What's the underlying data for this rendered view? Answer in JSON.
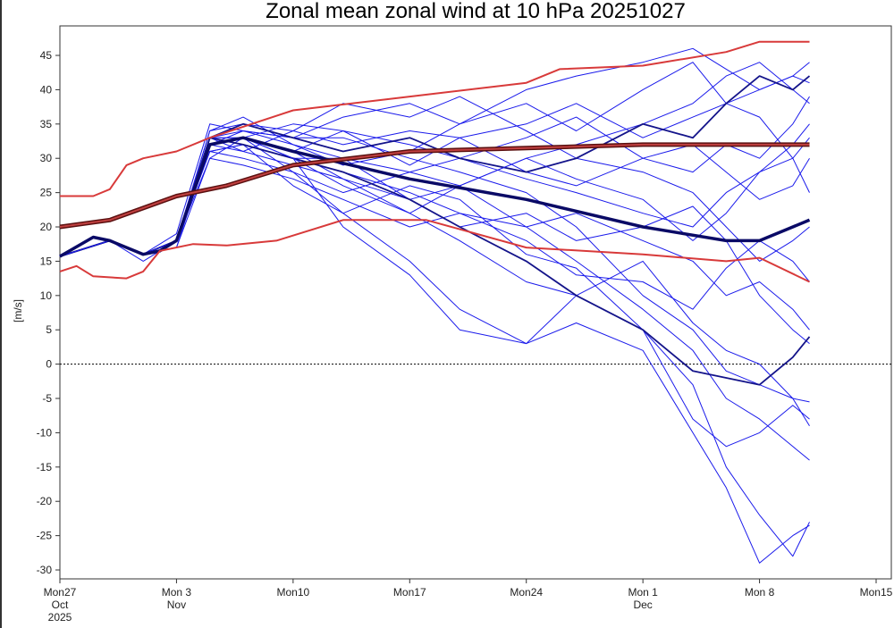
{
  "chart_data": {
    "type": "line",
    "title": "Zonal mean zonal wind at 10 hPa 20251027",
    "xlabel": "",
    "ylabel": "[m/s]",
    "ylim": [
      -31.3,
      49.3
    ],
    "xlim_days": [
      0,
      50
    ],
    "x_unit": "days since Mon 27 Oct 2025",
    "yticks": [
      45,
      40,
      35,
      30,
      25,
      20,
      15,
      10,
      5,
      0,
      -5,
      -10,
      -15,
      -20,
      -25,
      -30
    ],
    "xticks": [
      {
        "day": 0,
        "lines": [
          "Mon27",
          "Oct",
          "2025"
        ]
      },
      {
        "day": 7,
        "lines": [
          "Mon 3",
          "Nov"
        ]
      },
      {
        "day": 14,
        "lines": [
          "Mon10"
        ]
      },
      {
        "day": 21,
        "lines": [
          "Mon17"
        ]
      },
      {
        "day": 28,
        "lines": [
          "Mon24"
        ]
      },
      {
        "day": 35,
        "lines": [
          "Mon 1",
          "Dec"
        ]
      },
      {
        "day": 42,
        "lines": [
          "Mon 8"
        ]
      },
      {
        "day": 49,
        "lines": [
          "Mon15"
        ]
      }
    ],
    "zero_line": true,
    "colors": {
      "member": "#1a1aeb",
      "ensemble_mean": "#0a0a66",
      "clim_mean": "#8b1a1a",
      "clim_bounds": "#d83a3a"
    },
    "climatology": {
      "mean": {
        "x": [
          0,
          3,
          7,
          10,
          14,
          21,
          28,
          35,
          45
        ],
        "y": [
          20,
          21,
          24.5,
          26,
          29,
          31,
          31.5,
          32,
          32
        ]
      },
      "upper": {
        "x": [
          0,
          2,
          3,
          4,
          5,
          7,
          9,
          14,
          21,
          28,
          30,
          35,
          40,
          42,
          45
        ],
        "y": [
          24.5,
          24.5,
          25.5,
          29,
          30,
          31,
          33,
          37,
          39,
          41,
          43,
          43.5,
          45.5,
          47,
          47
        ]
      },
      "lower": {
        "x": [
          0,
          1,
          2,
          4,
          5,
          6,
          8,
          10,
          13,
          17,
          22,
          28,
          35,
          40,
          42,
          45
        ],
        "y": [
          13.5,
          14.3,
          12.8,
          12.5,
          13.5,
          16.5,
          17.5,
          17.3,
          18,
          21,
          21,
          17,
          16,
          15,
          15.5,
          12
        ]
      }
    },
    "ensemble_mean": {
      "x": [
        0,
        2,
        3,
        5,
        6,
        7,
        8,
        9,
        11,
        14,
        21,
        28,
        35,
        40,
        42,
        45
      ],
      "y": [
        15.7,
        18.5,
        18,
        16,
        16.5,
        18,
        25,
        32,
        33,
        31,
        27,
        24,
        20,
        18,
        18,
        21
      ]
    },
    "member_x": [
      0,
      3,
      5,
      7,
      9,
      11,
      14,
      17,
      21,
      24,
      28,
      31,
      35,
      38,
      40,
      42,
      44,
      45
    ],
    "members": [
      {
        "y": [
          15.7,
          18,
          16,
          18,
          33,
          34,
          33,
          36,
          38,
          35,
          40,
          42,
          44,
          46,
          43,
          40,
          42,
          44
        ]
      },
      {
        "y": [
          15.7,
          18,
          16,
          18,
          31,
          32,
          30,
          28,
          25,
          22,
          20,
          15,
          8,
          2,
          -5,
          -8,
          -12,
          -14
        ]
      },
      {
        "y": [
          15.7,
          18,
          16,
          17,
          30,
          33,
          31,
          27,
          22,
          18,
          12,
          10,
          5,
          -3,
          -15,
          -22,
          -28,
          -23
        ]
      },
      {
        "y": [
          15.7,
          18,
          16,
          18,
          34,
          35,
          34,
          32,
          34,
          33,
          35,
          38,
          33,
          36,
          38,
          40,
          42,
          41
        ]
      },
      {
        "y": [
          15.7,
          18,
          16,
          18,
          32,
          33,
          28,
          22,
          15,
          8,
          3,
          6,
          2,
          -10,
          -18,
          -29,
          -25,
          -23.5
        ]
      },
      {
        "y": [
          15.7,
          18,
          15,
          18,
          33,
          32,
          30,
          30,
          28,
          30,
          27,
          25,
          22,
          20,
          25,
          28,
          30,
          33
        ]
      },
      {
        "y": [
          15.7,
          18,
          16,
          19,
          35,
          34,
          32,
          30,
          24,
          26,
          20,
          22,
          18,
          15,
          10,
          12,
          8,
          5
        ]
      },
      {
        "y": [
          15.7,
          18,
          16,
          18,
          31,
          30,
          28,
          25,
          28,
          26,
          30,
          32,
          35,
          38,
          42,
          44,
          40,
          38
        ]
      },
      {
        "y": [
          15.7,
          18,
          16,
          17,
          32,
          33,
          30,
          20,
          13,
          5,
          3,
          10,
          15,
          6,
          2,
          0,
          -5,
          -9
        ]
      },
      {
        "y": [
          15.7,
          18,
          16,
          18,
          33,
          31,
          34,
          38,
          36,
          39,
          34,
          30,
          28,
          25,
          20,
          15,
          18,
          20
        ]
      },
      {
        "y": [
          15.7,
          18,
          16,
          18,
          32,
          34,
          33,
          33,
          30,
          28,
          25,
          20,
          10,
          5,
          -1,
          -3,
          -5,
          -5.5
        ]
      },
      {
        "y": [
          15.7,
          18,
          16,
          18,
          33,
          33,
          35,
          34,
          32,
          30,
          33,
          36,
          30,
          28,
          32,
          30,
          35,
          39
        ]
      },
      {
        "y": [
          15.7,
          18,
          16,
          18,
          30,
          29,
          27,
          24,
          20,
          22,
          18,
          13,
          12,
          8,
          14,
          18,
          15,
          12
        ]
      },
      {
        "y": [
          15.7,
          18,
          16,
          18,
          34,
          36,
          32,
          29,
          31,
          35,
          38,
          34,
          40,
          44,
          38,
          36,
          30,
          25
        ]
      },
      {
        "y": [
          15.7,
          18,
          16,
          18,
          31,
          32,
          26,
          22,
          26,
          24,
          16,
          14,
          5,
          -8,
          -12,
          -10,
          -6,
          -8
        ]
      },
      {
        "y": [
          15.7,
          18,
          16,
          18,
          33,
          33,
          31,
          34,
          29,
          33,
          28,
          26,
          30,
          32,
          28,
          24,
          26,
          30
        ]
      },
      {
        "y": [
          15.7,
          18,
          16,
          18,
          32,
          31,
          29,
          27,
          24,
          20,
          22,
          18,
          20,
          23,
          18,
          10,
          5,
          3
        ]
      },
      {
        "y": [
          15.7,
          18,
          16,
          18,
          33,
          32,
          30,
          28,
          24,
          20,
          15,
          10,
          5,
          -1,
          -2,
          -3,
          1,
          4
        ],
        "dark": true
      },
      {
        "y": [
          15.7,
          18,
          16,
          18,
          33,
          35,
          33,
          31,
          33,
          30,
          28,
          30,
          35,
          33,
          38,
          42,
          40,
          42
        ],
        "dark": true
      },
      {
        "y": [
          15.7,
          18,
          16,
          18,
          32,
          33,
          30,
          26,
          22,
          26,
          30,
          27,
          24,
          18,
          22,
          28,
          32,
          35
        ]
      }
    ]
  }
}
